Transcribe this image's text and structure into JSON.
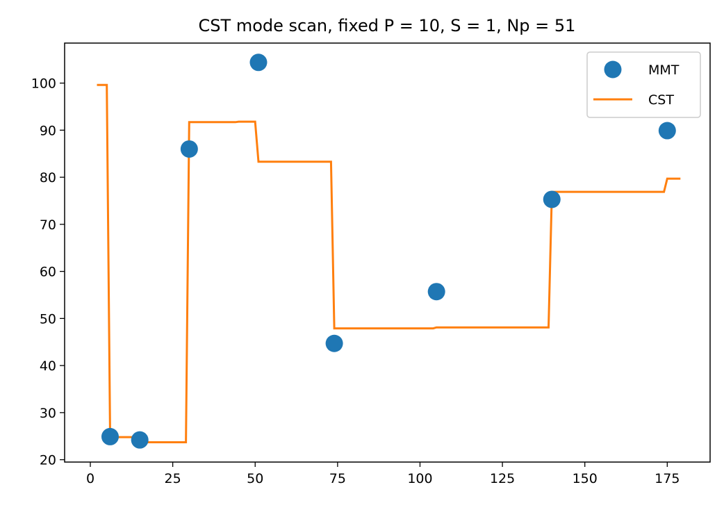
{
  "chart_data": {
    "type": "line",
    "title": "CST mode scan, fixed P = 10, S = 1, Np = 51",
    "xlabel": "",
    "ylabel": "",
    "xlim": [
      -7.8,
      188.0
    ],
    "ylim": [
      19.5,
      108.5
    ],
    "x_ticks": [
      0,
      25,
      50,
      75,
      100,
      125,
      150,
      175
    ],
    "y_ticks": [
      20,
      30,
      40,
      50,
      60,
      70,
      80,
      90,
      100
    ],
    "grid": false,
    "legend_position": "top-right",
    "colors": {
      "MMT": "#1f77b4",
      "CST": "#ff7f0e"
    },
    "series": [
      {
        "name": "MMT",
        "kind": "scatter",
        "x": [
          6,
          15,
          30,
          51,
          74,
          105,
          140,
          175
        ],
        "y": [
          24.9,
          24.2,
          86.0,
          104.4,
          44.7,
          55.7,
          75.3,
          89.9
        ]
      },
      {
        "name": "CST",
        "kind": "line",
        "x": [
          2,
          5,
          6,
          14,
          15,
          29,
          30,
          44,
          45,
          50,
          51,
          73,
          74,
          104,
          105,
          139,
          140,
          174,
          175,
          179
        ],
        "y": [
          99.6,
          99.6,
          24.8,
          24.8,
          23.7,
          23.7,
          91.7,
          91.7,
          91.8,
          91.8,
          83.3,
          83.3,
          47.9,
          47.9,
          48.1,
          48.1,
          76.9,
          76.9,
          79.7,
          79.7
        ]
      }
    ]
  }
}
